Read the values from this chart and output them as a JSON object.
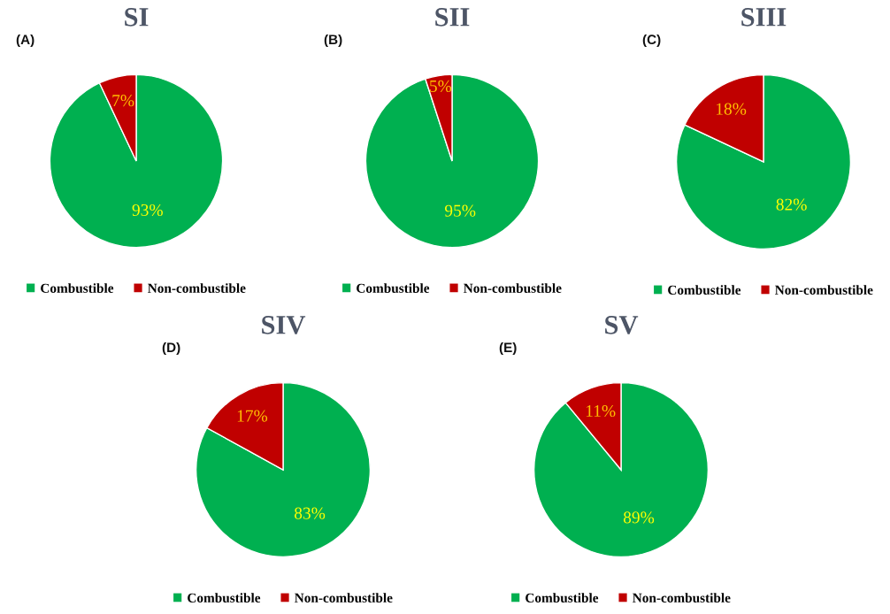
{
  "chart_data": [
    {
      "type": "pie",
      "title": "SI",
      "annotations": [
        "(A)"
      ],
      "categories": [
        "Combustible",
        "Non-combustible"
      ],
      "values": [
        93,
        7
      ],
      "colors": [
        "#00b050",
        "#c00000"
      ],
      "value_labels": [
        "93%",
        "7%"
      ],
      "legend": "bottom"
    },
    {
      "type": "pie",
      "title": "SII",
      "annotations": [
        "(B)"
      ],
      "categories": [
        "Combustible",
        "Non-combustible"
      ],
      "values": [
        95,
        5
      ],
      "colors": [
        "#00b050",
        "#c00000"
      ],
      "value_labels": [
        "95%",
        "5%"
      ],
      "legend": "bottom"
    },
    {
      "type": "pie",
      "title": "SIII",
      "annotations": [
        "(C)"
      ],
      "categories": [
        "Combustible",
        "Non-combustible"
      ],
      "values": [
        82,
        18
      ],
      "colors": [
        "#00b050",
        "#c00000"
      ],
      "value_labels": [
        "82%",
        "18%"
      ],
      "legend": "bottom"
    },
    {
      "type": "pie",
      "title": "SIV",
      "annotations": [
        "(D)"
      ],
      "categories": [
        "Combustible",
        "Non-combustible"
      ],
      "values": [
        83,
        17
      ],
      "colors": [
        "#00b050",
        "#c00000"
      ],
      "value_labels": [
        "83%",
        "17%"
      ],
      "legend": "bottom"
    },
    {
      "type": "pie",
      "title": "SV",
      "annotations": [
        "(E)"
      ],
      "categories": [
        "Combustible",
        "Non-combustible"
      ],
      "values": [
        89,
        11
      ],
      "colors": [
        "#00b050",
        "#c00000"
      ],
      "value_labels": [
        "89%",
        "11%"
      ],
      "legend": "bottom"
    }
  ]
}
